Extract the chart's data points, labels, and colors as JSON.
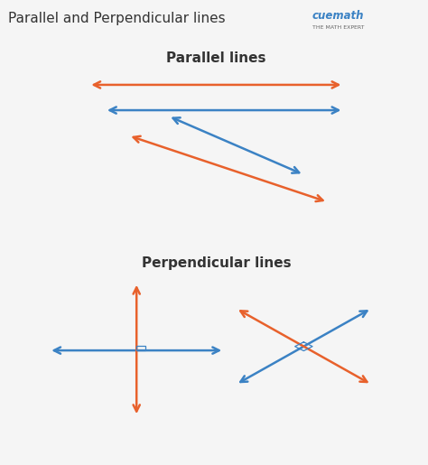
{
  "title": "Parallel and Perpendicular lines",
  "title_fontsize": 11,
  "title_color": "#333333",
  "bg_color": "#f5f5f5",
  "orange": "#E8612C",
  "blue": "#3B82C4",
  "panel_border_color": "#bbbbbb",
  "parallel_title": "Parallel lines",
  "perpendicular_title": "Perpendicular lines",
  "section_title_fontsize": 11,
  "cuemath_text": "cuemath",
  "cuemath_sub": "THE MATH EXPERT",
  "cuemath_color": "#3B82C4",
  "cuemath_sub_color": "#666666"
}
